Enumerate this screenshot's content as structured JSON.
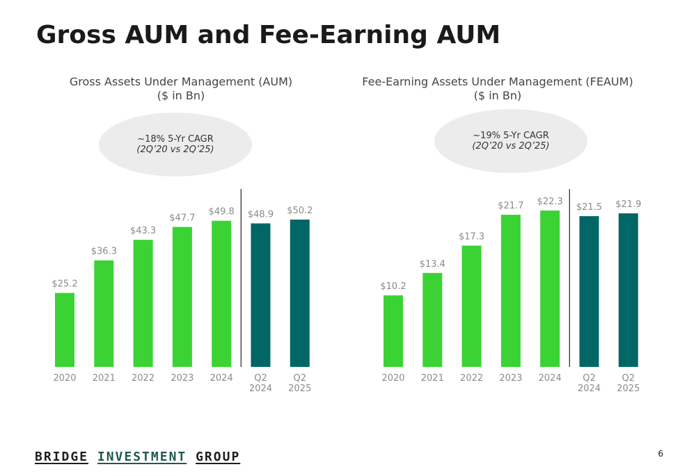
{
  "page": {
    "title": "Gross AUM and Fee-Earning AUM",
    "page_number": "6"
  },
  "footer": {
    "logo_words": [
      "BRIDGE",
      "INVESTMENT",
      "GROUP"
    ]
  },
  "colors": {
    "annual_bar": "#3bd334",
    "quarter_bar": "#006666",
    "label": "#8a8a8a",
    "divider": "#333333",
    "bubble": "#ececec"
  },
  "charts": {
    "left": {
      "title_line1": "Gross Assets Under Management (AUM)",
      "title_line2": "($ in Bn)",
      "cagr_main": "~18% 5-Yr CAGR",
      "cagr_sub": "(2Q’20 vs 2Q’25)"
    },
    "right": {
      "title_line1": "Fee-Earning Assets Under Management (FEAUM)",
      "title_line2": "($ in Bn)",
      "cagr_main": "~19% 5-Yr CAGR",
      "cagr_sub": "(2Q’20 vs 2Q’25)"
    }
  },
  "chart_data": [
    {
      "type": "bar",
      "title": "Gross Assets Under Management (AUM)",
      "subtitle": "($ in Bn)",
      "categories": [
        "2020",
        "2021",
        "2022",
        "2023",
        "2024",
        "Q2 2024",
        "Q2 2025"
      ],
      "values": [
        25.2,
        36.3,
        43.3,
        47.7,
        49.8,
        48.9,
        50.2
      ],
      "labels": [
        "$25.2",
        "$36.3",
        "$43.3",
        "$47.7",
        "$49.8",
        "$48.9",
        "$50.2"
      ],
      "ylim": [
        0,
        50.2
      ],
      "annotation": "~18% 5-Yr CAGR (2Q’20 vs 2Q’25)",
      "xlabel": "",
      "ylabel": ""
    },
    {
      "type": "bar",
      "title": "Fee-Earning Assets Under Management (FEAUM)",
      "subtitle": "($ in Bn)",
      "categories": [
        "2020",
        "2021",
        "2022",
        "2023",
        "2024",
        "Q2 2024",
        "Q2 2025"
      ],
      "values": [
        10.2,
        13.4,
        17.3,
        21.7,
        22.3,
        21.5,
        21.9
      ],
      "labels": [
        "$10.2",
        "$13.4",
        "$17.3",
        "$21.7",
        "$22.3",
        "$21.5",
        "$21.9"
      ],
      "ylim": [
        0,
        22.3
      ],
      "annotation": "~19% 5-Yr CAGR (2Q’20 vs 2Q’25)",
      "xlabel": "",
      "ylabel": ""
    }
  ]
}
